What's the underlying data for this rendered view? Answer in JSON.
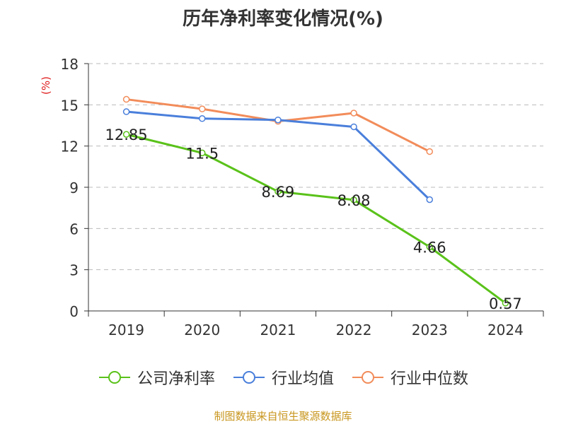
{
  "chart_data": {
    "type": "line",
    "title": "历年净利率变化情况(%)",
    "unit_label": "(%)",
    "categories": [
      "2019",
      "2020",
      "2021",
      "2022",
      "2023",
      "2024"
    ],
    "ylim": [
      0,
      18
    ],
    "yticks": [
      0,
      3,
      6,
      9,
      12,
      15,
      18
    ],
    "grid": true,
    "legend_position": "bottom",
    "series": [
      {
        "name": "公司净利率",
        "color": "#5ac21a",
        "values": [
          12.85,
          11.5,
          8.69,
          8.08,
          4.66,
          0.57
        ],
        "labels": [
          "12.85",
          "11.5",
          "8.69",
          "8.08",
          "4.66",
          "0.57"
        ]
      },
      {
        "name": "行业均值",
        "color": "#4a7fdb",
        "values": [
          14.5,
          14.0,
          13.9,
          13.4,
          8.1,
          null
        ]
      },
      {
        "name": "行业中位数",
        "color": "#f28c5a",
        "values": [
          15.4,
          14.7,
          13.8,
          14.4,
          11.6,
          null
        ]
      }
    ]
  },
  "source": "制图数据来自恒生聚源数据库"
}
